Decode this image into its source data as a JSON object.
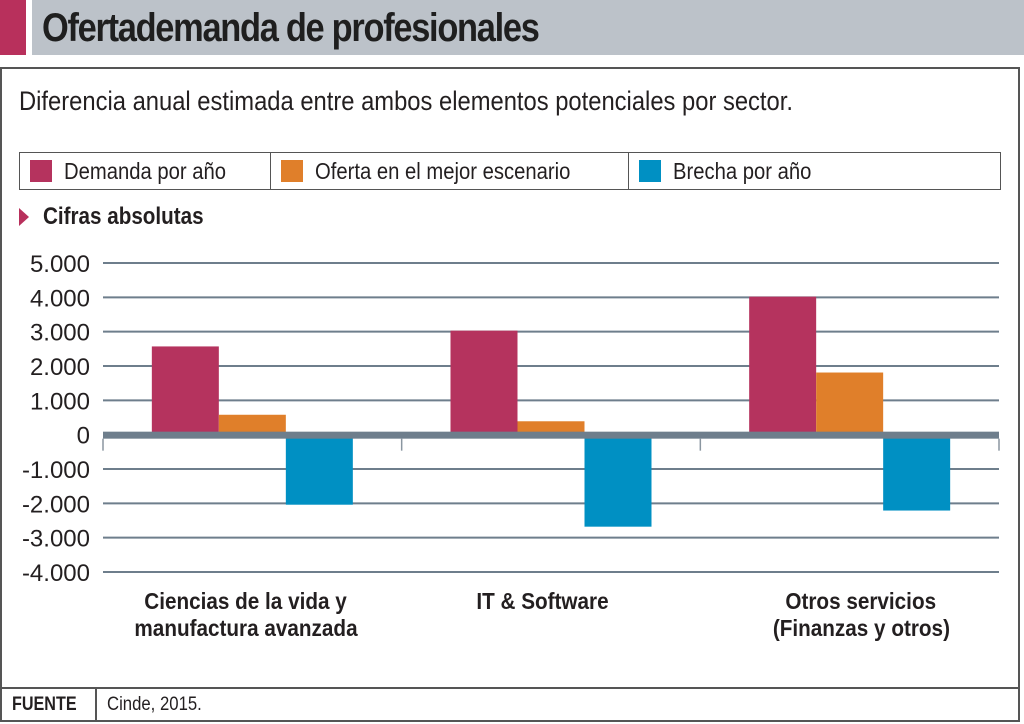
{
  "header": {
    "title": "Ofertademanda de profesionales",
    "accent_color": "#b8305c",
    "bar_color": "#bcc2c9"
  },
  "subtitle": "Diferencia anual estimada entre ambos elementos potenciales por sector.",
  "section": {
    "label": "Cifras absolutas",
    "icon": "triangle-right-icon"
  },
  "footer": {
    "source_label": "FUENTE",
    "source_value": "Cinde, 2015."
  },
  "chart_data": {
    "type": "bar",
    "title": "Ofertademanda de profesionales",
    "subtitle": "Diferencia anual estimada entre ambos elementos potenciales por sector.",
    "xlabel": "",
    "ylabel": "",
    "categories": [
      [
        "Ciencias de la vida y",
        "manufactura avanzada"
      ],
      [
        "IT & Software"
      ],
      [
        "Otros servicios",
        "(Finanzas y otros)"
      ]
    ],
    "series": [
      {
        "name": "Demanda por año",
        "color": "#b5335e",
        "values": [
          2570,
          3030,
          4020
        ]
      },
      {
        "name": "Oferta en el mejor escenario",
        "color": "#e07f2a",
        "values": [
          580,
          390,
          1810
        ]
      },
      {
        "name": "Brecha por año",
        "color": "#0090c3",
        "values": [
          -2040,
          -2680,
          -2210
        ]
      }
    ],
    "ylim": [
      -4000,
      5000
    ],
    "yticks": [
      5000,
      4000,
      3000,
      2000,
      1000,
      0,
      -1000,
      -2000,
      -3000,
      -4000
    ],
    "ytick_labels": [
      "5.000",
      "4.000",
      "3.000",
      "2.000",
      "1.000",
      "0",
      "-1.000",
      "-2.000",
      "-3.000",
      "-4.000"
    ],
    "grid": true,
    "legend_position": "top",
    "colors": {
      "grid": "#6e7e8c",
      "axis": "#6e7e8c"
    }
  }
}
